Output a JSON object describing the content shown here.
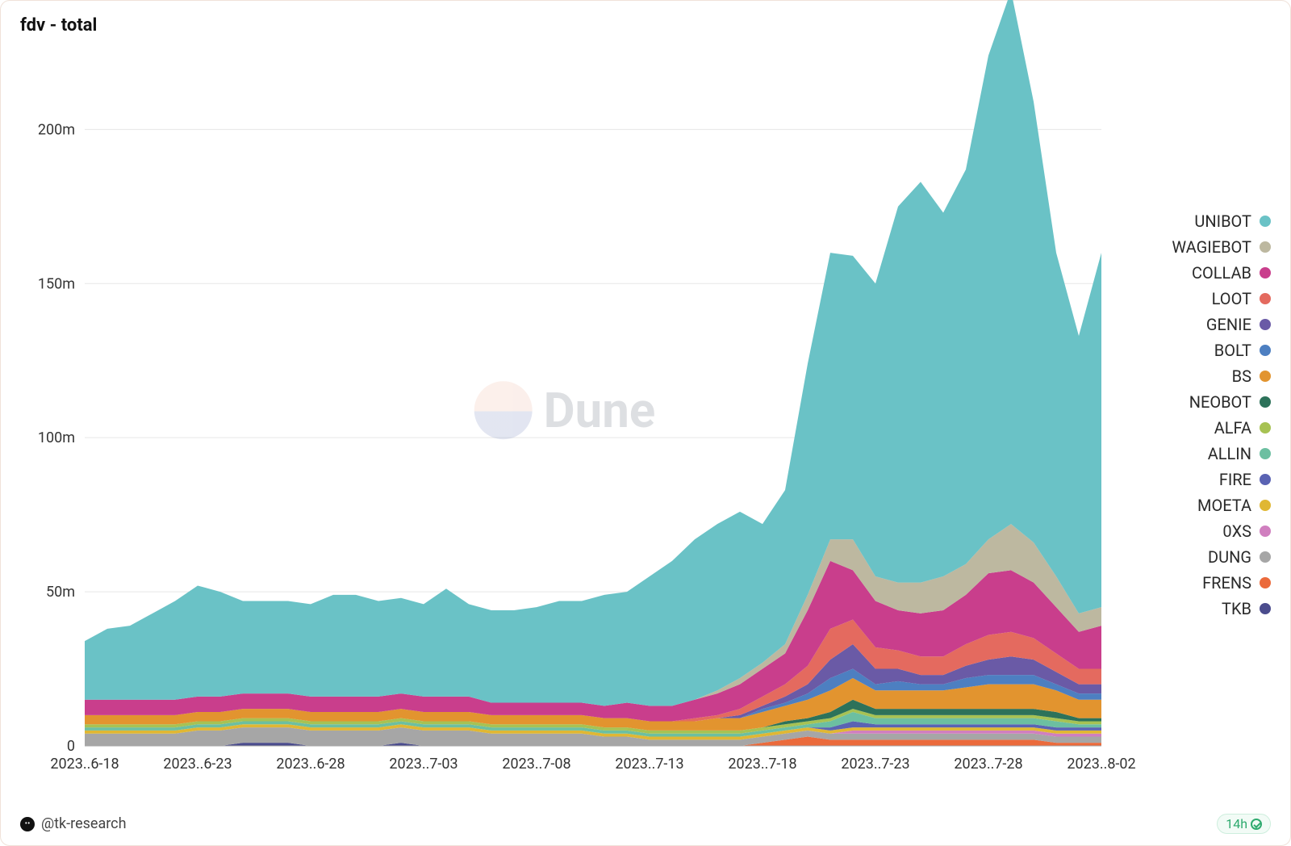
{
  "title": "fdv - total",
  "author": "@tk-research",
  "freshness": "14h",
  "watermark_text": "Dune",
  "chart": {
    "type": "stacked-area",
    "background_color": "#ffffff",
    "grid_color": "#e7e7e7",
    "axis_font_size": 18,
    "y_axis": {
      "min": 0,
      "max": 220,
      "ticks": [
        0,
        50,
        100,
        150,
        200
      ],
      "tick_labels": [
        "0",
        "50m",
        "100m",
        "150m",
        "200m"
      ],
      "unit": "m"
    },
    "x_axis": {
      "tick_labels": [
        "2023..6-18",
        "2023..6-23",
        "2023..6-28",
        "2023..7-03",
        "2023..7-08",
        "2023..7-13",
        "2023..7-18",
        "2023..7-23",
        "2023..7-28",
        "2023..8-02"
      ],
      "tick_indices": [
        0,
        5,
        10,
        15,
        20,
        25,
        30,
        35,
        40,
        45
      ],
      "n_points": 46
    },
    "series": [
      {
        "name": "UNIBOT",
        "color": "#6ac2c6",
        "values": [
          19,
          23,
          24,
          28,
          32,
          36,
          34,
          30,
          30,
          30,
          30,
          33,
          33,
          31,
          31,
          30,
          35,
          30,
          30,
          30,
          31,
          33,
          33,
          36,
          36,
          42,
          47,
          52,
          54,
          54,
          45,
          50,
          75,
          93,
          92,
          95,
          122,
          130,
          118,
          128,
          157,
          173,
          143,
          105,
          90,
          115
        ]
      },
      {
        "name": "WAGIEBOT",
        "color": "#bdb8a0",
        "values": [
          0,
          0,
          0,
          0,
          0,
          0,
          0,
          0,
          0,
          0,
          0,
          0,
          0,
          0,
          0,
          0,
          0,
          0,
          0,
          0,
          0,
          0,
          0,
          0,
          0,
          0,
          0,
          0,
          1,
          2,
          2,
          3,
          5,
          7,
          10,
          8,
          9,
          10,
          11,
          10,
          11,
          15,
          13,
          10,
          6,
          6
        ]
      },
      {
        "name": "COLLAB",
        "color": "#c93e8c",
        "values": [
          5,
          5,
          5,
          5,
          5,
          5,
          5,
          5,
          5,
          5,
          5,
          5,
          5,
          5,
          5,
          5,
          5,
          5,
          4,
          4,
          4,
          4,
          4,
          4,
          5,
          5,
          5,
          6,
          7,
          8,
          9,
          10,
          18,
          22,
          16,
          15,
          13,
          14,
          15,
          16,
          20,
          20,
          18,
          15,
          12,
          14
        ]
      },
      {
        "name": "LOOT",
        "color": "#e46a5f",
        "values": [
          0,
          0,
          0,
          0,
          0,
          0,
          0,
          0,
          0,
          0,
          0,
          0,
          0,
          0,
          0,
          0,
          0,
          0,
          0,
          0,
          0,
          0,
          0,
          0,
          0,
          0,
          0,
          1,
          1,
          2,
          3,
          4,
          6,
          10,
          8,
          7,
          6,
          6,
          6,
          7,
          8,
          8,
          7,
          6,
          5,
          5
        ]
      },
      {
        "name": "GENIE",
        "color": "#6a5aa6",
        "values": [
          0,
          0,
          0,
          0,
          0,
          0,
          0,
          0,
          0,
          0,
          0,
          0,
          0,
          0,
          0,
          0,
          0,
          0,
          0,
          0,
          0,
          0,
          0,
          0,
          0,
          0,
          0,
          0,
          0,
          1,
          1,
          2,
          3,
          6,
          8,
          5,
          4,
          3,
          3,
          4,
          5,
          6,
          5,
          4,
          3,
          3
        ]
      },
      {
        "name": "BOLT",
        "color": "#4d7fc1",
        "values": [
          0,
          0,
          0,
          0,
          0,
          0,
          0,
          0,
          0,
          0,
          0,
          0,
          0,
          0,
          0,
          0,
          0,
          0,
          0,
          0,
          0,
          0,
          0,
          0,
          0,
          0,
          0,
          0,
          0,
          0,
          1,
          1,
          2,
          4,
          3,
          2,
          3,
          2,
          2,
          3,
          3,
          3,
          3,
          2,
          2,
          2
        ]
      },
      {
        "name": "BS",
        "color": "#e2942f",
        "values": [
          3,
          3,
          3,
          3,
          3,
          3,
          3,
          3,
          3,
          3,
          3,
          3,
          3,
          3,
          3,
          3,
          3,
          3,
          3,
          3,
          3,
          3,
          3,
          3,
          3,
          3,
          3,
          3,
          4,
          4,
          5,
          5,
          6,
          7,
          7,
          6,
          6,
          6,
          6,
          7,
          8,
          8,
          8,
          7,
          6,
          6
        ]
      },
      {
        "name": "NEOBOT",
        "color": "#2d725a",
        "values": [
          0,
          0,
          0,
          0,
          0,
          0,
          0,
          0,
          0,
          0,
          0,
          0,
          0,
          0,
          0,
          0,
          0,
          0,
          0,
          0,
          0,
          0,
          0,
          0,
          0,
          0,
          0,
          0,
          0,
          0,
          0,
          1,
          1,
          2,
          3,
          2,
          2,
          2,
          2,
          2,
          2,
          2,
          2,
          2,
          1,
          1
        ]
      },
      {
        "name": "ALFA",
        "color": "#a7c253",
        "values": [
          1,
          1,
          1,
          1,
          1,
          1,
          1,
          1,
          1,
          1,
          1,
          1,
          1,
          1,
          1,
          1,
          1,
          1,
          1,
          1,
          1,
          1,
          1,
          1,
          1,
          1,
          1,
          1,
          1,
          1,
          1,
          1,
          1,
          1,
          1,
          1,
          1,
          1,
          1,
          1,
          1,
          1,
          1,
          1,
          1,
          1
        ]
      },
      {
        "name": "ALLIN",
        "color": "#6cbfa1",
        "values": [
          1,
          1,
          1,
          1,
          1,
          1,
          1,
          1,
          1,
          1,
          1,
          1,
          1,
          1,
          1,
          1,
          1,
          1,
          1,
          1,
          1,
          1,
          1,
          1,
          1,
          1,
          1,
          1,
          1,
          1,
          1,
          1,
          1,
          2,
          3,
          2,
          2,
          2,
          2,
          2,
          2,
          2,
          2,
          2,
          1,
          1
        ]
      },
      {
        "name": "FIRE",
        "color": "#5a63b3",
        "values": [
          0,
          0,
          0,
          0,
          0,
          0,
          0,
          0,
          0,
          0,
          0,
          0,
          0,
          0,
          0,
          0,
          0,
          0,
          0,
          0,
          0,
          0,
          0,
          0,
          0,
          0,
          0,
          0,
          0,
          0,
          0,
          0,
          0,
          1,
          2,
          1,
          1,
          1,
          1,
          1,
          1,
          1,
          1,
          1,
          1,
          1
        ]
      },
      {
        "name": "MOETA",
        "color": "#e0b733",
        "values": [
          1,
          1,
          1,
          1,
          1,
          1,
          1,
          1,
          1,
          1,
          1,
          1,
          1,
          1,
          1,
          1,
          1,
          1,
          1,
          1,
          1,
          1,
          1,
          1,
          1,
          1,
          1,
          1,
          1,
          1,
          1,
          1,
          1,
          1,
          1,
          1,
          1,
          1,
          1,
          1,
          1,
          1,
          1,
          1,
          1,
          1
        ]
      },
      {
        "name": "0XS",
        "color": "#d07fbf",
        "values": [
          0,
          0,
          0,
          0,
          0,
          0,
          0,
          0,
          0,
          0,
          0,
          0,
          0,
          0,
          0,
          0,
          0,
          0,
          0,
          0,
          0,
          0,
          0,
          0,
          0,
          0,
          0,
          0,
          0,
          0,
          0,
          0,
          0,
          0,
          1,
          1,
          1,
          1,
          1,
          1,
          1,
          1,
          1,
          1,
          1,
          1
        ]
      },
      {
        "name": "DUNG",
        "color": "#a6a6a6",
        "values": [
          4,
          4,
          4,
          4,
          4,
          5,
          5,
          5,
          5,
          5,
          5,
          5,
          5,
          5,
          5,
          5,
          5,
          5,
          4,
          4,
          4,
          4,
          4,
          3,
          3,
          2,
          2,
          2,
          2,
          2,
          2,
          2,
          2,
          2,
          2,
          2,
          2,
          2,
          2,
          2,
          2,
          2,
          2,
          2,
          2,
          2
        ]
      },
      {
        "name": "FRENS",
        "color": "#eb6a3b",
        "values": [
          0,
          0,
          0,
          0,
          0,
          0,
          0,
          0,
          0,
          0,
          0,
          0,
          0,
          0,
          0,
          0,
          0,
          0,
          0,
          0,
          0,
          0,
          0,
          0,
          0,
          0,
          0,
          0,
          0,
          0,
          1,
          2,
          3,
          2,
          2,
          2,
          2,
          2,
          2,
          2,
          2,
          2,
          2,
          1,
          1,
          1
        ]
      },
      {
        "name": "TKB",
        "color": "#4b4c8d",
        "values": [
          0,
          0,
          0,
          0,
          0,
          0,
          0,
          1,
          1,
          1,
          0,
          0,
          0,
          0,
          1,
          0,
          0,
          0,
          0,
          0,
          0,
          0,
          0,
          0,
          0,
          0,
          0,
          0,
          0,
          0,
          0,
          0,
          0,
          0,
          0,
          0,
          0,
          0,
          0,
          0,
          0,
          0,
          0,
          0,
          0,
          0
        ]
      }
    ]
  }
}
